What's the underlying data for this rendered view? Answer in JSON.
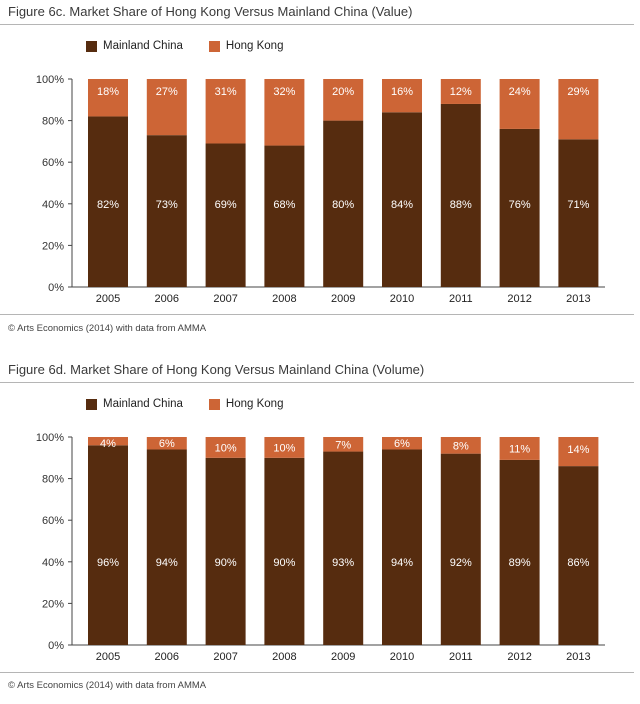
{
  "source_note": "© Arts Economics (2014) with data from AMMA",
  "colors": {
    "mainland": "#562c0f",
    "hongkong": "#cd6536",
    "axis": "#444444",
    "grid": "#bbbbbb"
  },
  "chart_data": [
    {
      "type": "bar",
      "stacked": true,
      "title": "Figure 6c. Market Share of Hong Kong Versus Mainland China (Value)",
      "categories": [
        "2005",
        "2006",
        "2007",
        "2008",
        "2009",
        "2010",
        "2011",
        "2012",
        "2013"
      ],
      "series": [
        {
          "name": "Mainland China",
          "values": [
            82,
            73,
            69,
            68,
            80,
            84,
            88,
            76,
            71
          ],
          "labels": [
            "82%",
            "73%",
            "69%",
            "68%",
            "80%",
            "84%",
            "88%",
            "76%",
            "71%"
          ]
        },
        {
          "name": "Hong Kong",
          "values": [
            18,
            27,
            31,
            32,
            20,
            16,
            12,
            24,
            29
          ],
          "labels": [
            "18%",
            "27%",
            "31%",
            "32%",
            "20%",
            "16%",
            "12%",
            "24%",
            "29%"
          ]
        }
      ],
      "ylim": [
        0,
        100
      ],
      "yticks": [
        0,
        20,
        40,
        60,
        80,
        100
      ],
      "ytick_labels": [
        "0%",
        "20%",
        "40%",
        "60%",
        "80%",
        "100%"
      ],
      "legend": "top-left",
      "grid": false,
      "source": "© Arts Economics (2014) with data from AMMA"
    },
    {
      "type": "bar",
      "stacked": true,
      "title": "Figure 6d. Market Share of Hong Kong Versus Mainland China (Volume)",
      "categories": [
        "2005",
        "2006",
        "2007",
        "2008",
        "2009",
        "2010",
        "2011",
        "2012",
        "2013"
      ],
      "series": [
        {
          "name": "Mainland China",
          "values": [
            96,
            94,
            90,
            90,
            93,
            94,
            92,
            89,
            86
          ],
          "labels": [
            "96%",
            "94%",
            "90%",
            "90%",
            "93%",
            "94%",
            "92%",
            "89%",
            "86%"
          ]
        },
        {
          "name": "Hong Kong",
          "values": [
            4,
            6,
            10,
            10,
            7,
            6,
            8,
            11,
            14
          ],
          "labels": [
            "4%",
            "6%",
            "10%",
            "10%",
            "7%",
            "6%",
            "8%",
            "11%",
            "14%"
          ]
        }
      ],
      "ylim": [
        0,
        100
      ],
      "yticks": [
        0,
        20,
        40,
        60,
        80,
        100
      ],
      "ytick_labels": [
        "0%",
        "20%",
        "40%",
        "60%",
        "80%",
        "100%"
      ],
      "legend": "top-left",
      "grid": false,
      "source": "© Arts Economics (2014) with data from AMMA"
    }
  ]
}
